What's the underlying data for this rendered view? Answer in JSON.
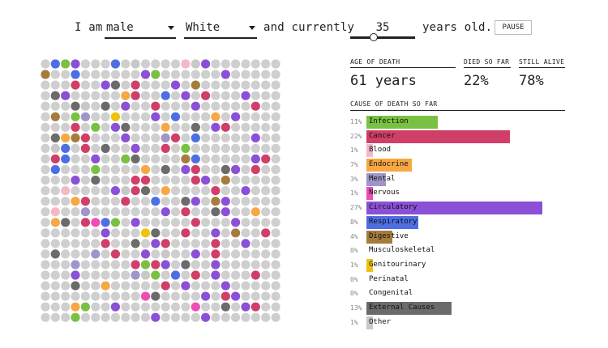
{
  "controls": {
    "i_am": "I am",
    "sex": "male",
    "race": "White",
    "and_currently": "and currently",
    "age": "35",
    "years_old": "years old.",
    "pause": "PAUSE"
  },
  "stats": {
    "age_of_death_label": "AGE OF DEATH",
    "age_of_death_value": "61 years",
    "died_label": "DIED SO FAR",
    "died_value": "22%",
    "alive_label": "STILL ALIVE",
    "alive_value": "78%",
    "cause_heading": "CAUSE OF DEATH SO FAR"
  },
  "colors": {
    "Infection": "#7ac143",
    "Cancer": "#cf3f68",
    "Blood": "#f4b8c8",
    "Endocrine": "#f7a845",
    "Mental": "#9d97c9",
    "Nervous": "#ef4db5",
    "Circulatory": "#8b50d6",
    "Respiratory": "#4d6fe3",
    "Digestive": "#a57c3c",
    "Musculoskeletal": "#ffffff",
    "Genitourinary": "#eec310",
    "Perinatal": "#ffffff",
    "Congenital": "#ffffff",
    "External Causes": "#6b6b6b",
    "Other": "#c8c8c8",
    "alive": "#cfcfcf"
  },
  "causes": [
    {
      "pct": "11%",
      "label": "Infection",
      "value": 11
    },
    {
      "pct": "22%",
      "label": "Cancer",
      "value": 22
    },
    {
      "pct": "1%",
      "label": "Blood",
      "value": 1
    },
    {
      "pct": "7%",
      "label": "Endocrine",
      "value": 7
    },
    {
      "pct": "3%",
      "label": "Mental",
      "value": 3
    },
    {
      "pct": "1%",
      "label": "Nervous",
      "value": 1
    },
    {
      "pct": "27%",
      "label": "Circulatory",
      "value": 27
    },
    {
      "pct": "8%",
      "label": "Respiratory",
      "value": 8
    },
    {
      "pct": "4%",
      "label": "Digestive",
      "value": 4
    },
    {
      "pct": "0%",
      "label": "Musculoskeletal",
      "value": 0
    },
    {
      "pct": "1%",
      "label": "Genitourinary",
      "value": 1
    },
    {
      "pct": "0%",
      "label": "Perinatal",
      "value": 0
    },
    {
      "pct": "0%",
      "label": "Congenital",
      "value": 0
    },
    {
      "pct": "13%",
      "label": "External Causes",
      "value": 13
    },
    {
      "pct": "1%",
      "label": "Other",
      "value": 1
    }
  ],
  "dots": {
    "Infection": [
      [
        0,
        2
      ],
      [
        1,
        11
      ],
      [
        5,
        3
      ],
      [
        6,
        5
      ],
      [
        8,
        14
      ],
      [
        9,
        8
      ],
      [
        10,
        5
      ],
      [
        12,
        7
      ],
      [
        15,
        7
      ],
      [
        19,
        10
      ],
      [
        19,
        12
      ],
      [
        20,
        11
      ],
      [
        22,
        10
      ],
      [
        23,
        4
      ],
      [
        24,
        3
      ]
    ],
    "Cancer": [
      [
        2,
        3
      ],
      [
        2,
        7
      ],
      [
        2,
        9
      ],
      [
        3,
        9
      ],
      [
        4,
        11
      ],
      [
        6,
        3
      ],
      [
        7,
        4
      ],
      [
        7,
        13
      ],
      [
        8,
        4
      ],
      [
        8,
        12
      ],
      [
        9,
        1
      ],
      [
        10,
        15
      ],
      [
        11,
        9
      ],
      [
        11,
        10
      ],
      [
        12,
        9
      ],
      [
        13,
        8
      ],
      [
        14,
        14
      ],
      [
        15,
        4
      ],
      [
        16,
        14
      ],
      [
        17,
        6
      ],
      [
        17,
        17
      ],
      [
        18,
        17
      ],
      [
        19,
        3
      ],
      [
        19,
        9
      ],
      [
        19,
        11
      ],
      [
        20,
        15
      ],
      [
        21,
        12
      ],
      [
        22,
        18
      ],
      [
        4,
        21
      ],
      [
        9,
        22
      ],
      [
        14,
        21
      ],
      [
        16,
        22
      ],
      [
        20,
        21
      ],
      [
        3,
        16
      ],
      [
        6,
        18
      ],
      [
        11,
        15
      ],
      [
        13,
        4
      ],
      [
        15,
        15
      ],
      [
        17,
        12
      ],
      [
        18,
        7
      ],
      [
        10,
        21
      ],
      [
        12,
        17
      ],
      [
        23,
        21
      ]
    ],
    "Blood": [
      [
        0,
        14
      ],
      [
        10,
        14
      ],
      [
        12,
        2
      ],
      [
        14,
        1
      ]
    ],
    "Endocrine": [
      [
        3,
        8
      ],
      [
        6,
        12
      ],
      [
        9,
        2
      ],
      [
        10,
        10
      ],
      [
        12,
        12
      ],
      [
        13,
        3
      ],
      [
        14,
        21
      ],
      [
        15,
        1
      ],
      [
        21,
        6
      ],
      [
        23,
        3
      ],
      [
        7,
        2
      ],
      [
        5,
        17
      ]
    ],
    "Mental": [
      [
        5,
        4
      ],
      [
        7,
        12
      ],
      [
        14,
        4
      ],
      [
        18,
        5
      ],
      [
        19,
        3
      ],
      [
        20,
        9
      ]
    ],
    "Nervous": [
      [
        15,
        5
      ],
      [
        22,
        10
      ],
      [
        23,
        15
      ]
    ],
    "Circulatory": [
      [
        0,
        3
      ],
      [
        1,
        10
      ],
      [
        2,
        13
      ],
      [
        3,
        2
      ],
      [
        4,
        15
      ],
      [
        5,
        11
      ],
      [
        6,
        7
      ],
      [
        7,
        8
      ],
      [
        8,
        1
      ],
      [
        9,
        5
      ],
      [
        10,
        14
      ],
      [
        11,
        3
      ],
      [
        12,
        7
      ],
      [
        13,
        15
      ],
      [
        14,
        12
      ],
      [
        15,
        9
      ],
      [
        16,
        6
      ],
      [
        17,
        11
      ],
      [
        18,
        10
      ],
      [
        19,
        12
      ],
      [
        20,
        3
      ],
      [
        21,
        14
      ],
      [
        22,
        16
      ],
      [
        23,
        7
      ],
      [
        24,
        11
      ],
      [
        2,
        6
      ],
      [
        4,
        8
      ],
      [
        6,
        17
      ],
      [
        9,
        21
      ],
      [
        11,
        16
      ],
      [
        13,
        18
      ],
      [
        15,
        19
      ],
      [
        17,
        20
      ],
      [
        19,
        17
      ],
      [
        21,
        18
      ],
      [
        23,
        20
      ],
      [
        1,
        18
      ],
      [
        3,
        20
      ],
      [
        5,
        19
      ],
      [
        7,
        21
      ],
      [
        10,
        19
      ],
      [
        12,
        20
      ],
      [
        14,
        18
      ],
      [
        16,
        17
      ],
      [
        18,
        15
      ],
      [
        20,
        17
      ],
      [
        22,
        19
      ],
      [
        24,
        16
      ],
      [
        0,
        16
      ],
      [
        3,
        14
      ],
      [
        8,
        9
      ],
      [
        16,
        11
      ]
    ],
    "Respiratory": [
      [
        0,
        7
      ],
      [
        1,
        3
      ],
      [
        7,
        15
      ],
      [
        8,
        2
      ],
      [
        9,
        2
      ],
      [
        10,
        1
      ],
      [
        13,
        11
      ],
      [
        12,
        8
      ],
      [
        3,
        12
      ],
      [
        5,
        13
      ],
      [
        15,
        6
      ],
      [
        20,
        13
      ],
      [
        0,
        1
      ],
      [
        9,
        15
      ]
    ],
    "Digestive": [
      [
        1,
        0
      ],
      [
        5,
        1
      ],
      [
        7,
        3
      ],
      [
        9,
        14
      ],
      [
        11,
        18
      ],
      [
        13,
        17
      ],
      [
        2,
        15
      ],
      [
        16,
        19
      ]
    ],
    "Genitourinary": [
      [
        5,
        7
      ],
      [
        16,
        10
      ]
    ],
    "External Causes": [
      [
        2,
        7
      ],
      [
        3,
        1
      ],
      [
        4,
        3
      ],
      [
        4,
        6
      ],
      [
        6,
        8
      ],
      [
        7,
        1
      ],
      [
        8,
        6
      ],
      [
        9,
        9
      ],
      [
        10,
        12
      ],
      [
        11,
        5
      ],
      [
        12,
        10
      ],
      [
        13,
        14
      ],
      [
        15,
        2
      ],
      [
        16,
        11
      ],
      [
        17,
        9
      ],
      [
        18,
        1
      ],
      [
        19,
        14
      ],
      [
        21,
        3
      ],
      [
        22,
        11
      ],
      [
        6,
        15
      ],
      [
        10,
        18
      ],
      [
        14,
        17
      ],
      [
        23,
        18
      ]
    ],
    "Other": [
      [
        0,
        9
      ],
      [
        0,
        15
      ],
      [
        4,
        4
      ],
      [
        8,
        1
      ],
      [
        12,
        8
      ],
      [
        20,
        10
      ],
      [
        18,
        12
      ]
    ]
  }
}
